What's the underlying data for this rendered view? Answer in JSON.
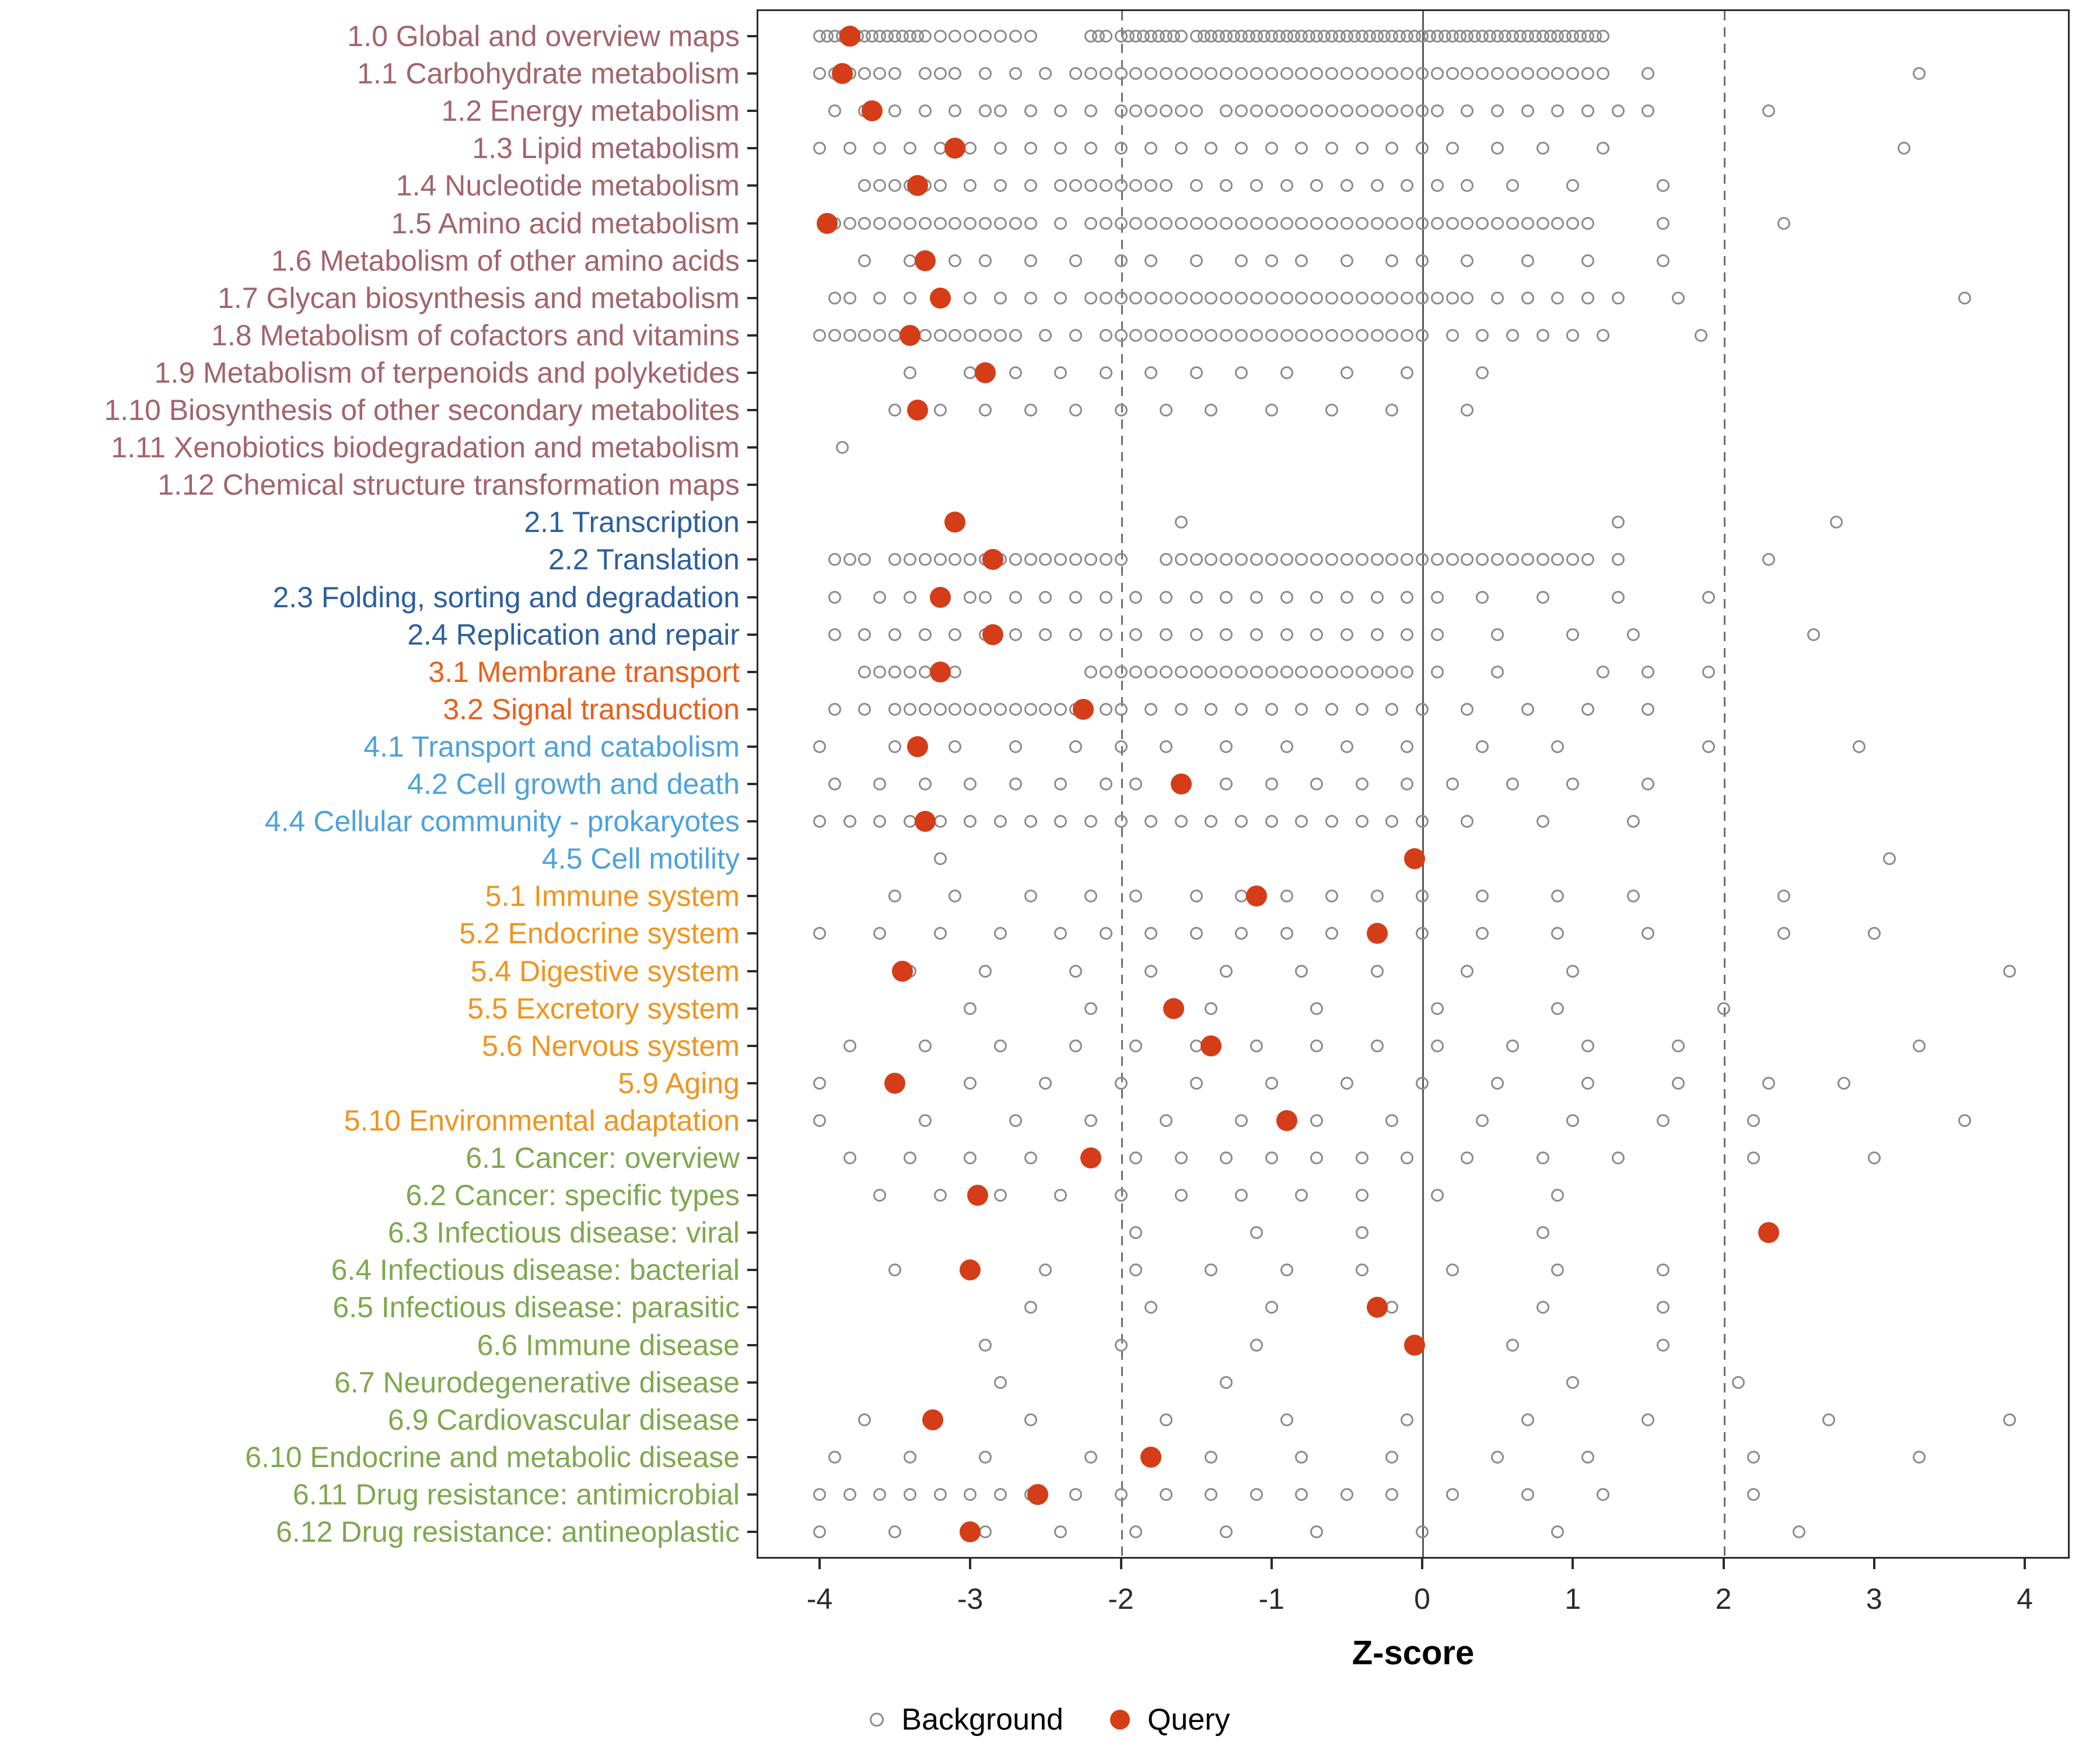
{
  "chart_data": {
    "type": "scatter",
    "title": "",
    "xlabel": "Z-score",
    "ylabel": "",
    "xlim": [
      -4,
      4
    ],
    "x_ticks": [
      -4,
      -3,
      -2,
      -1,
      0,
      1,
      2,
      3,
      4
    ],
    "reference_lines": {
      "solid": [
        0
      ],
      "dashed": [
        -2,
        2
      ]
    },
    "grid": "off",
    "legend_position": "bottom",
    "legend": [
      {
        "label": "Background",
        "marker": "open-circle",
        "color": "#8c8c8c"
      },
      {
        "label": "Query",
        "marker": "filled-circle",
        "color": "#D43D17"
      }
    ],
    "group_colors": {
      "1": "#A3646C",
      "2": "#2C5F9E",
      "3": "#E8601D",
      "4": "#4DA2DC",
      "5": "#F0941E",
      "6": "#7FA84E"
    },
    "rows": [
      {
        "label": "1.0 Global and overview maps",
        "group": "1",
        "query": -3.8,
        "background": [
          -4,
          -3.95,
          -3.9,
          -3.85,
          -3.8,
          -3.75,
          -3.7,
          -3.65,
          -3.6,
          -3.55,
          -3.5,
          -3.45,
          -3.4,
          -3.35,
          -3.3,
          -3.2,
          -3.1,
          -3,
          -2.9,
          -2.8,
          -2.7,
          -2.6,
          -2.2,
          -2.15,
          -2.1,
          -2,
          -1.95,
          -1.9,
          -1.85,
          -1.8,
          -1.75,
          -1.7,
          -1.65,
          -1.6,
          -1.5,
          -1.45,
          -1.4,
          -1.35,
          -1.3,
          -1.25,
          -1.2,
          -1.15,
          -1.1,
          -1.05,
          -1,
          -0.95,
          -0.9,
          -0.85,
          -0.8,
          -0.75,
          -0.7,
          -0.65,
          -0.6,
          -0.55,
          -0.5,
          -0.45,
          -0.4,
          -0.35,
          -0.3,
          -0.25,
          -0.2,
          -0.15,
          -0.1,
          -0.05,
          0,
          0.05,
          0.1,
          0.15,
          0.2,
          0.25,
          0.3,
          0.35,
          0.4,
          0.45,
          0.5,
          0.55,
          0.6,
          0.65,
          0.7,
          0.75,
          0.8,
          0.85,
          0.9,
          0.95,
          1,
          1.05,
          1.1,
          1.15,
          1.2
        ]
      },
      {
        "label": "1.1 Carbohydrate metabolism",
        "group": "1",
        "query": -3.85,
        "background": [
          -4,
          -3.9,
          -3.8,
          -3.7,
          -3.6,
          -3.5,
          -3.3,
          -3.2,
          -3.1,
          -2.9,
          -2.7,
          -2.5,
          -2.3,
          -2.2,
          -2.1,
          -2,
          -1.9,
          -1.8,
          -1.7,
          -1.6,
          -1.5,
          -1.4,
          -1.3,
          -1.2,
          -1.1,
          -1,
          -0.9,
          -0.8,
          -0.7,
          -0.6,
          -0.5,
          -0.4,
          -0.3,
          -0.2,
          -0.1,
          0,
          0.1,
          0.2,
          0.3,
          0.4,
          0.5,
          0.6,
          0.7,
          0.8,
          0.9,
          1,
          1.1,
          1.2,
          1.5,
          3.3
        ]
      },
      {
        "label": "1.2 Energy metabolism",
        "group": "1",
        "query": -3.65,
        "background": [
          -3.9,
          -3.7,
          -3.5,
          -3.3,
          -3.1,
          -2.9,
          -2.8,
          -2.6,
          -2.4,
          -2.2,
          -2,
          -1.9,
          -1.8,
          -1.7,
          -1.6,
          -1.5,
          -1.3,
          -1.2,
          -1.1,
          -1,
          -0.9,
          -0.8,
          -0.7,
          -0.6,
          -0.5,
          -0.4,
          -0.3,
          -0.2,
          -0.1,
          0,
          0.1,
          0.3,
          0.5,
          0.7,
          0.9,
          1.1,
          1.3,
          1.5,
          2.3
        ]
      },
      {
        "label": "1.3 Lipid metabolism",
        "group": "1",
        "query": -3.1,
        "background": [
          -4,
          -3.8,
          -3.6,
          -3.4,
          -3.2,
          -3,
          -2.8,
          -2.6,
          -2.4,
          -2.2,
          -2,
          -1.8,
          -1.6,
          -1.4,
          -1.2,
          -1,
          -0.8,
          -0.6,
          -0.4,
          -0.2,
          0,
          0.2,
          0.5,
          0.8,
          1.2,
          3.2
        ]
      },
      {
        "label": "1.4 Nucleotide metabolism",
        "group": "1",
        "query": -3.35,
        "background": [
          -3.7,
          -3.6,
          -3.5,
          -3.4,
          -3.3,
          -3.2,
          -3,
          -2.8,
          -2.6,
          -2.4,
          -2.3,
          -2.2,
          -2.1,
          -2,
          -1.9,
          -1.8,
          -1.7,
          -1.5,
          -1.3,
          -1.1,
          -0.9,
          -0.7,
          -0.5,
          -0.3,
          -0.1,
          0.1,
          0.3,
          0.6,
          1,
          1.6
        ]
      },
      {
        "label": "1.5 Amino acid metabolism",
        "group": "1",
        "query": -3.95,
        "background": [
          -3.9,
          -3.8,
          -3.7,
          -3.6,
          -3.5,
          -3.4,
          -3.3,
          -3.2,
          -3.1,
          -3,
          -2.9,
          -2.8,
          -2.7,
          -2.6,
          -2.4,
          -2.2,
          -2.1,
          -2,
          -1.9,
          -1.8,
          -1.7,
          -1.6,
          -1.5,
          -1.4,
          -1.3,
          -1.2,
          -1.1,
          -1,
          -0.9,
          -0.8,
          -0.7,
          -0.6,
          -0.5,
          -0.4,
          -0.3,
          -0.2,
          -0.1,
          0,
          0.1,
          0.2,
          0.3,
          0.4,
          0.5,
          0.6,
          0.7,
          0.8,
          0.9,
          1,
          1.1,
          1.6,
          2.4
        ]
      },
      {
        "label": "1.6 Metabolism of other amino acids",
        "group": "1",
        "query": -3.3,
        "background": [
          -3.7,
          -3.4,
          -3.1,
          -2.9,
          -2.6,
          -2.3,
          -2,
          -1.8,
          -1.5,
          -1.2,
          -1,
          -0.8,
          -0.5,
          -0.2,
          0,
          0.3,
          0.7,
          1.1,
          1.6
        ]
      },
      {
        "label": "1.7 Glycan biosynthesis and metabolism",
        "group": "1",
        "query": -3.2,
        "background": [
          -3.9,
          -3.8,
          -3.6,
          -3.4,
          -3.2,
          -3,
          -2.8,
          -2.6,
          -2.4,
          -2.2,
          -2.1,
          -2,
          -1.9,
          -1.8,
          -1.7,
          -1.6,
          -1.5,
          -1.4,
          -1.3,
          -1.2,
          -1.1,
          -1,
          -0.9,
          -0.8,
          -0.7,
          -0.6,
          -0.5,
          -0.4,
          -0.3,
          -0.2,
          -0.1,
          0,
          0.1,
          0.2,
          0.3,
          0.5,
          0.7,
          0.9,
          1.1,
          1.3,
          1.7,
          3.6
        ]
      },
      {
        "label": "1.8 Metabolism of cofactors and vitamins",
        "group": "1",
        "query": -3.4,
        "background": [
          -4,
          -3.9,
          -3.8,
          -3.7,
          -3.6,
          -3.5,
          -3.4,
          -3.3,
          -3.2,
          -3.1,
          -3,
          -2.9,
          -2.8,
          -2.7,
          -2.5,
          -2.3,
          -2.1,
          -2,
          -1.9,
          -1.8,
          -1.7,
          -1.6,
          -1.5,
          -1.4,
          -1.3,
          -1.2,
          -1.1,
          -1,
          -0.9,
          -0.8,
          -0.7,
          -0.6,
          -0.5,
          -0.4,
          -0.3,
          -0.2,
          -0.1,
          0,
          0.2,
          0.4,
          0.6,
          0.8,
          1,
          1.2,
          1.85
        ]
      },
      {
        "label": "1.9 Metabolism of terpenoids and polyketides",
        "group": "1",
        "query": -2.9,
        "background": [
          -3.4,
          -3,
          -2.7,
          -2.4,
          -2.1,
          -1.8,
          -1.5,
          -1.2,
          -0.9,
          -0.5,
          -0.1,
          0.4
        ]
      },
      {
        "label": "1.10 Biosynthesis of other secondary metabolites",
        "group": "1",
        "query": -3.35,
        "background": [
          -3.5,
          -3.2,
          -2.9,
          -2.6,
          -2.3,
          -2,
          -1.7,
          -1.4,
          -1,
          -0.6,
          -0.2,
          0.3
        ]
      },
      {
        "label": "1.11 Xenobiotics biodegradation and metabolism",
        "group": "1",
        "query": null,
        "background": [
          -3.85
        ]
      },
      {
        "label": "1.12 Chemical structure transformation maps",
        "group": "1",
        "query": null,
        "background": []
      },
      {
        "label": "2.1 Transcription",
        "group": "2",
        "query": -3.1,
        "background": [
          -1.6,
          1.3,
          2.75
        ]
      },
      {
        "label": "2.2 Translation",
        "group": "2",
        "query": -2.85,
        "background": [
          -3.9,
          -3.8,
          -3.7,
          -3.5,
          -3.4,
          -3.3,
          -3.2,
          -3.1,
          -3,
          -2.9,
          -2.8,
          -2.7,
          -2.6,
          -2.5,
          -2.4,
          -2.3,
          -2.2,
          -2.1,
          -2,
          -1.7,
          -1.6,
          -1.5,
          -1.4,
          -1.3,
          -1.2,
          -1.1,
          -1,
          -0.9,
          -0.8,
          -0.7,
          -0.6,
          -0.5,
          -0.4,
          -0.3,
          -0.2,
          -0.1,
          0,
          0.1,
          0.2,
          0.3,
          0.4,
          0.5,
          0.6,
          0.7,
          0.8,
          0.9,
          1,
          1.1,
          1.3,
          2.3
        ]
      },
      {
        "label": "2.3 Folding, sorting and degradation",
        "group": "2",
        "query": -3.2,
        "background": [
          -3.9,
          -3.6,
          -3.4,
          -3.2,
          -3,
          -2.9,
          -2.7,
          -2.5,
          -2.3,
          -2.1,
          -1.9,
          -1.7,
          -1.5,
          -1.3,
          -1.1,
          -0.9,
          -0.7,
          -0.5,
          -0.3,
          -0.1,
          0.1,
          0.4,
          0.8,
          1.3,
          1.9
        ]
      },
      {
        "label": "2.4 Replication and repair",
        "group": "2",
        "query": -2.85,
        "background": [
          -3.9,
          -3.7,
          -3.5,
          -3.3,
          -3.1,
          -2.9,
          -2.7,
          -2.5,
          -2.3,
          -2.1,
          -1.9,
          -1.7,
          -1.5,
          -1.3,
          -1.1,
          -0.9,
          -0.7,
          -0.5,
          -0.3,
          -0.1,
          0.1,
          0.5,
          1,
          1.4,
          2.6
        ]
      },
      {
        "label": "3.1 Membrane transport",
        "group": "3",
        "query": -3.2,
        "background": [
          -3.7,
          -3.6,
          -3.5,
          -3.4,
          -3.3,
          -3.1,
          -2.2,
          -2.1,
          -2,
          -1.9,
          -1.8,
          -1.7,
          -1.6,
          -1.5,
          -1.4,
          -1.3,
          -1.2,
          -1.1,
          -1,
          -0.9,
          -0.8,
          -0.7,
          -0.6,
          -0.5,
          -0.4,
          -0.3,
          -0.2,
          -0.1,
          0.1,
          0.5,
          1.2,
          1.5,
          1.9
        ]
      },
      {
        "label": "3.2 Signal transduction",
        "group": "3",
        "query": -2.25,
        "background": [
          -3.9,
          -3.7,
          -3.5,
          -3.4,
          -3.3,
          -3.2,
          -3.1,
          -3,
          -2.9,
          -2.8,
          -2.7,
          -2.6,
          -2.5,
          -2.4,
          -2.3,
          -2.1,
          -2,
          -1.8,
          -1.6,
          -1.4,
          -1.2,
          -1,
          -0.8,
          -0.6,
          -0.4,
          -0.2,
          0,
          0.3,
          0.7,
          1.1,
          1.5
        ]
      },
      {
        "label": "4.1 Transport and catabolism",
        "group": "4",
        "query": -3.35,
        "background": [
          -4,
          -3.5,
          -3.1,
          -2.7,
          -2.3,
          -2,
          -1.7,
          -1.3,
          -0.9,
          -0.5,
          -0.1,
          0.4,
          0.9,
          1.9,
          2.9
        ]
      },
      {
        "label": "4.2 Cell growth and death",
        "group": "4",
        "query": -1.6,
        "background": [
          -3.9,
          -3.6,
          -3.3,
          -3,
          -2.7,
          -2.4,
          -2.1,
          -1.9,
          -1.3,
          -1,
          -0.7,
          -0.4,
          -0.1,
          0.2,
          0.6,
          1,
          1.5
        ]
      },
      {
        "label": "4.4 Cellular community - prokaryotes",
        "group": "4",
        "query": -3.3,
        "background": [
          -4,
          -3.8,
          -3.6,
          -3.4,
          -3.2,
          -3,
          -2.8,
          -2.6,
          -2.4,
          -2.2,
          -2,
          -1.8,
          -1.6,
          -1.4,
          -1.2,
          -1,
          -0.8,
          -0.6,
          -0.4,
          -0.2,
          0,
          0.3,
          0.8,
          1.4
        ]
      },
      {
        "label": "4.5 Cell motility",
        "group": "4",
        "query": -0.05,
        "background": [
          -3.2,
          3.1
        ]
      },
      {
        "label": "5.1 Immune system",
        "group": "5",
        "query": -1.1,
        "background": [
          -3.5,
          -3.1,
          -2.6,
          -2.2,
          -1.9,
          -1.5,
          -1.2,
          -0.9,
          -0.6,
          -0.3,
          0,
          0.4,
          0.9,
          1.4,
          2.4
        ]
      },
      {
        "label": "5.2 Endocrine system",
        "group": "5",
        "query": -0.3,
        "background": [
          -4,
          -3.6,
          -3.2,
          -2.8,
          -2.4,
          -2.1,
          -1.8,
          -1.5,
          -1.2,
          -0.9,
          -0.6,
          -0.3,
          0,
          0.4,
          0.9,
          1.5,
          2.4,
          3
        ]
      },
      {
        "label": "5.4 Digestive system",
        "group": "5",
        "query": -3.45,
        "background": [
          -3.4,
          -2.9,
          -2.3,
          -1.8,
          -1.3,
          -0.8,
          -0.3,
          0.3,
          1,
          3.9
        ]
      },
      {
        "label": "5.5 Excretory system",
        "group": "5",
        "query": -1.65,
        "background": [
          -3,
          -2.2,
          -1.4,
          -0.7,
          0.1,
          0.9,
          2
        ]
      },
      {
        "label": "5.6 Nervous system",
        "group": "5",
        "query": -1.4,
        "background": [
          -3.8,
          -3.3,
          -2.8,
          -2.3,
          -1.9,
          -1.5,
          -1.1,
          -0.7,
          -0.3,
          0.1,
          0.6,
          1.1,
          1.7,
          3.3
        ]
      },
      {
        "label": "5.9 Aging",
        "group": "5",
        "query": -3.5,
        "background": [
          -4,
          -3,
          -2.5,
          -2,
          -1.5,
          -1,
          -0.5,
          0,
          0.5,
          1.1,
          1.7,
          2.3,
          2.8
        ]
      },
      {
        "label": "5.10 Environmental adaptation",
        "group": "5",
        "query": -0.9,
        "background": [
          -4,
          -3.3,
          -2.7,
          -2.2,
          -1.7,
          -1.2,
          -0.7,
          -0.2,
          0.4,
          1,
          1.6,
          2.2,
          3.6
        ]
      },
      {
        "label": "6.1 Cancer: overview",
        "group": "6",
        "query": -2.2,
        "background": [
          -3.8,
          -3.4,
          -3,
          -2.6,
          -2.2,
          -1.9,
          -1.6,
          -1.3,
          -1,
          -0.7,
          -0.4,
          -0.1,
          0.3,
          0.8,
          1.3,
          2.2,
          3
        ]
      },
      {
        "label": "6.2 Cancer: specific types",
        "group": "6",
        "query": -2.95,
        "background": [
          -3.6,
          -3.2,
          -2.8,
          -2.4,
          -2,
          -1.6,
          -1.2,
          -0.8,
          -0.4,
          0.1,
          0.9
        ]
      },
      {
        "label": "6.3 Infectious disease: viral",
        "group": "6",
        "query": 2.3,
        "background": [
          -1.9,
          -1.1,
          -0.4,
          0.8
        ]
      },
      {
        "label": "6.4 Infectious disease: bacterial",
        "group": "6",
        "query": -3,
        "background": [
          -3.5,
          -3,
          -2.5,
          -1.9,
          -1.4,
          -0.9,
          -0.4,
          0.2,
          0.9,
          1.6
        ]
      },
      {
        "label": "6.5 Infectious disease: parasitic",
        "group": "6",
        "query": -0.3,
        "background": [
          -2.6,
          -1.8,
          -1,
          -0.2,
          0.8,
          1.6
        ]
      },
      {
        "label": "6.6 Immune disease",
        "group": "6",
        "query": -0.05,
        "background": [
          -2.9,
          -2,
          -1.1,
          0.6,
          1.6
        ]
      },
      {
        "label": "6.7 Neurodegenerative disease",
        "group": "6",
        "query": null,
        "background": [
          -2.8,
          -1.3,
          1,
          2.1
        ]
      },
      {
        "label": "6.9 Cardiovascular disease",
        "group": "6",
        "query": -3.25,
        "background": [
          -3.7,
          -2.6,
          -1.7,
          -0.9,
          -0.1,
          0.7,
          1.5,
          2.7,
          3.9
        ]
      },
      {
        "label": "6.10 Endocrine and metabolic disease",
        "group": "6",
        "query": -1.8,
        "background": [
          -3.9,
          -3.4,
          -2.9,
          -2.2,
          -1.4,
          -0.8,
          -0.2,
          0.5,
          1.1,
          2.2,
          3.3
        ]
      },
      {
        "label": "6.11 Drug resistance: antimicrobial",
        "group": "6",
        "query": -2.55,
        "background": [
          -4,
          -3.8,
          -3.6,
          -3.4,
          -3.2,
          -3,
          -2.8,
          -2.6,
          -2.3,
          -2,
          -1.7,
          -1.4,
          -1.1,
          -0.8,
          -0.5,
          -0.2,
          0.2,
          0.7,
          1.2,
          2.2
        ]
      },
      {
        "label": "6.12 Drug resistance: antineoplastic",
        "group": "6",
        "query": -3,
        "background": [
          -4,
          -3.5,
          -2.9,
          -2.4,
          -1.9,
          -1.3,
          -0.7,
          0,
          0.9,
          2.5
        ]
      }
    ]
  }
}
